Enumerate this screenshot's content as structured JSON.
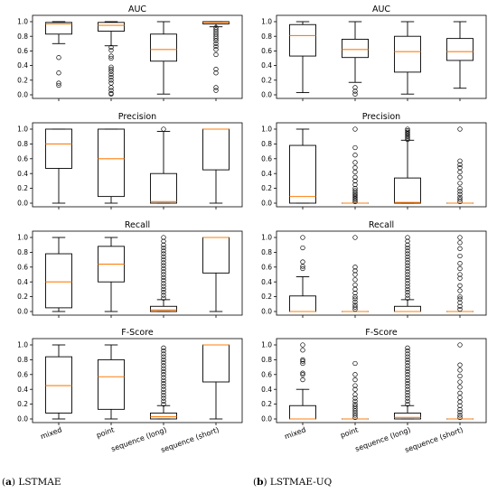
{
  "captions": [
    {
      "letter": "a",
      "text": "LSTMAE"
    },
    {
      "letter": "b",
      "text": "LSTMAE-UQ"
    }
  ],
  "colors": {
    "box": "#000000",
    "median": "#ff7f0e",
    "outlier": "#000000"
  },
  "chart_data": [
    {
      "type": "box",
      "column": 0,
      "row": 0,
      "title": "AUC",
      "categories": [
        "mixed",
        "point",
        "sequence (long)",
        "sequence (short)"
      ],
      "ylim": [
        0,
        1
      ],
      "yticks": [
        0.0,
        0.2,
        0.4,
        0.6,
        0.8,
        1.0
      ],
      "boxes": [
        {
          "whisker_low": 0.7,
          "q1": 0.83,
          "median": 0.97,
          "q3": 0.99,
          "whisker_high": 1.0,
          "outliers": [
            0.51,
            0.3,
            0.16,
            0.13
          ]
        },
        {
          "whisker_low": 0.67,
          "q1": 0.87,
          "median": 0.95,
          "q3": 0.99,
          "whisker_high": 1.0,
          "outliers": [
            0.65,
            0.61,
            0.53,
            0.5,
            0.38,
            0.35,
            0.32,
            0.28,
            0.24,
            0.2,
            0.16,
            0.1,
            0.06,
            0.02,
            0.01
          ]
        },
        {
          "whisker_low": 0.01,
          "q1": 0.46,
          "median": 0.62,
          "q3": 0.83,
          "whisker_high": 1.0,
          "outliers": []
        },
        {
          "whisker_low": 0.93,
          "q1": 0.97,
          "median": 0.99,
          "q3": 1.0,
          "whisker_high": 1.0,
          "outliers": [
            0.92,
            0.89,
            0.86,
            0.83,
            0.8,
            0.77,
            0.74,
            0.7,
            0.66,
            0.62,
            0.55,
            0.35,
            0.3,
            0.1,
            0.06
          ]
        }
      ]
    },
    {
      "type": "box",
      "column": 0,
      "row": 1,
      "title": "Precision",
      "categories": [
        "mixed",
        "point",
        "sequence (long)",
        "sequence (short)"
      ],
      "ylim": [
        0,
        1
      ],
      "yticks": [
        0.0,
        0.2,
        0.4,
        0.6,
        0.8,
        1.0
      ],
      "boxes": [
        {
          "whisker_low": 0.0,
          "q1": 0.47,
          "median": 0.8,
          "q3": 1.0,
          "whisker_high": 1.0,
          "outliers": []
        },
        {
          "whisker_low": 0.0,
          "q1": 0.09,
          "median": 0.6,
          "q3": 1.0,
          "whisker_high": 1.0,
          "outliers": []
        },
        {
          "whisker_low": 0.0,
          "q1": 0.0,
          "median": 0.02,
          "q3": 0.4,
          "whisker_high": 0.97,
          "outliers": [
            1.0
          ]
        },
        {
          "whisker_low": 0.0,
          "q1": 0.45,
          "median": 1.0,
          "q3": 1.0,
          "whisker_high": 1.0,
          "outliers": []
        }
      ]
    },
    {
      "type": "box",
      "column": 0,
      "row": 2,
      "title": "Recall",
      "categories": [
        "mixed",
        "point",
        "sequence (long)",
        "sequence (short)"
      ],
      "ylim": [
        0,
        1
      ],
      "yticks": [
        0.0,
        0.2,
        0.4,
        0.6,
        0.8,
        1.0
      ],
      "boxes": [
        {
          "whisker_low": 0.0,
          "q1": 0.05,
          "median": 0.4,
          "q3": 0.78,
          "whisker_high": 1.0,
          "outliers": []
        },
        {
          "whisker_low": 0.0,
          "q1": 0.4,
          "median": 0.64,
          "q3": 0.88,
          "whisker_high": 1.0,
          "outliers": []
        },
        {
          "whisker_low": 0.0,
          "q1": 0.0,
          "median": 0.02,
          "q3": 0.07,
          "whisker_high": 0.16,
          "outliers": [
            0.18,
            0.22,
            0.26,
            0.3,
            0.34,
            0.38,
            0.42,
            0.46,
            0.5,
            0.54,
            0.58,
            0.62,
            0.66,
            0.7,
            0.74,
            0.78,
            0.82,
            0.86,
            0.9,
            0.95,
            1.0
          ]
        },
        {
          "whisker_low": 0.0,
          "q1": 0.52,
          "median": 1.0,
          "q3": 1.0,
          "whisker_high": 1.0,
          "outliers": []
        }
      ]
    },
    {
      "type": "box",
      "column": 0,
      "row": 3,
      "title": "F-Score",
      "categories": [
        "mixed",
        "point",
        "sequence (long)",
        "sequence (short)"
      ],
      "ylim": [
        0,
        1
      ],
      "yticks": [
        0.0,
        0.2,
        0.4,
        0.6,
        0.8,
        1.0
      ],
      "boxes": [
        {
          "whisker_low": 0.0,
          "q1": 0.08,
          "median": 0.45,
          "q3": 0.84,
          "whisker_high": 1.0,
          "outliers": []
        },
        {
          "whisker_low": 0.0,
          "q1": 0.13,
          "median": 0.57,
          "q3": 0.8,
          "whisker_high": 1.0,
          "outliers": []
        },
        {
          "whisker_low": 0.0,
          "q1": 0.0,
          "median": 0.03,
          "q3": 0.08,
          "whisker_high": 0.18,
          "outliers": [
            0.2,
            0.24,
            0.28,
            0.32,
            0.36,
            0.4,
            0.44,
            0.48,
            0.52,
            0.56,
            0.6,
            0.64,
            0.68,
            0.72,
            0.76,
            0.8,
            0.84,
            0.88,
            0.92,
            0.96
          ]
        },
        {
          "whisker_low": 0.0,
          "q1": 0.5,
          "median": 1.0,
          "q3": 1.0,
          "whisker_high": 1.0,
          "outliers": []
        }
      ]
    },
    {
      "type": "box",
      "column": 1,
      "row": 0,
      "title": "AUC",
      "categories": [
        "mixed",
        "point",
        "sequence (long)",
        "sequence (short)"
      ],
      "ylim": [
        0,
        1
      ],
      "yticks": [
        0.0,
        0.2,
        0.4,
        0.6,
        0.8,
        1.0
      ],
      "boxes": [
        {
          "whisker_low": 0.03,
          "q1": 0.53,
          "median": 0.81,
          "q3": 0.96,
          "whisker_high": 1.0,
          "outliers": []
        },
        {
          "whisker_low": 0.17,
          "q1": 0.51,
          "median": 0.62,
          "q3": 0.76,
          "whisker_high": 1.0,
          "outliers": [
            0.1,
            0.05,
            0.01
          ]
        },
        {
          "whisker_low": 0.01,
          "q1": 0.31,
          "median": 0.59,
          "q3": 0.8,
          "whisker_high": 1.0,
          "outliers": []
        },
        {
          "whisker_low": 0.09,
          "q1": 0.47,
          "median": 0.59,
          "q3": 0.77,
          "whisker_high": 1.0,
          "outliers": []
        }
      ]
    },
    {
      "type": "box",
      "column": 1,
      "row": 1,
      "title": "Precision",
      "categories": [
        "mixed",
        "point",
        "sequence (long)",
        "sequence (short)"
      ],
      "ylim": [
        0,
        1
      ],
      "yticks": [
        0.0,
        0.2,
        0.4,
        0.6,
        0.8,
        1.0
      ],
      "boxes": [
        {
          "whisker_low": 0.0,
          "q1": 0.0,
          "median": 0.09,
          "q3": 0.78,
          "whisker_high": 1.0,
          "outliers": []
        },
        {
          "whisker_low": 0.0,
          "q1": 0.0,
          "median": 0.0,
          "q3": 0.0,
          "whisker_high": 0.0,
          "outliers": [
            0.02,
            0.04,
            0.06,
            0.08,
            0.1,
            0.12,
            0.14,
            0.17,
            0.2,
            0.25,
            0.3,
            0.35,
            0.42,
            0.48,
            0.55,
            0.65,
            0.75,
            1.0
          ]
        },
        {
          "whisker_low": 0.0,
          "q1": 0.0,
          "median": 0.01,
          "q3": 0.34,
          "whisker_high": 0.85,
          "outliers": [
            0.86,
            0.88,
            0.9,
            0.92,
            0.94,
            0.96,
            0.98,
            1.0
          ]
        },
        {
          "whisker_low": 0.0,
          "q1": 0.0,
          "median": 0.0,
          "q3": 0.0,
          "whisker_high": 0.0,
          "outliers": [
            0.02,
            0.05,
            0.08,
            0.12,
            0.16,
            0.2,
            0.27,
            0.35,
            0.42,
            0.48,
            0.52,
            0.57,
            1.0
          ]
        }
      ]
    },
    {
      "type": "box",
      "column": 1,
      "row": 2,
      "title": "Recall",
      "categories": [
        "mixed",
        "point",
        "sequence (long)",
        "sequence (short)"
      ],
      "ylim": [
        0,
        1
      ],
      "yticks": [
        0.0,
        0.2,
        0.4,
        0.6,
        0.8,
        1.0
      ],
      "boxes": [
        {
          "whisker_low": 0.0,
          "q1": 0.0,
          "median": 0.0,
          "q3": 0.21,
          "whisker_high": 0.47,
          "outliers": [
            0.58,
            0.61,
            0.67,
            0.86,
            1.0
          ]
        },
        {
          "whisker_low": 0.0,
          "q1": 0.0,
          "median": 0.0,
          "q3": 0.0,
          "whisker_high": 0.0,
          "outliers": [
            0.03,
            0.06,
            0.09,
            0.13,
            0.17,
            0.2,
            0.25,
            0.3,
            0.36,
            0.43,
            0.5,
            0.55,
            0.6,
            1.0
          ]
        },
        {
          "whisker_low": 0.0,
          "q1": 0.0,
          "median": 0.0,
          "q3": 0.07,
          "whisker_high": 0.16,
          "outliers": [
            0.18,
            0.22,
            0.26,
            0.3,
            0.34,
            0.38,
            0.42,
            0.46,
            0.5,
            0.54,
            0.58,
            0.62,
            0.66,
            0.7,
            0.74,
            0.78,
            0.82,
            0.86,
            0.9,
            0.95,
            1.0
          ]
        },
        {
          "whisker_low": 0.0,
          "q1": 0.0,
          "median": 0.0,
          "q3": 0.0,
          "whisker_high": 0.0,
          "outliers": [
            0.03,
            0.07,
            0.12,
            0.17,
            0.2,
            0.28,
            0.35,
            0.45,
            0.5,
            0.58,
            0.65,
            0.75,
            0.85,
            0.93,
            1.0
          ]
        }
      ]
    },
    {
      "type": "box",
      "column": 1,
      "row": 3,
      "title": "F-Score",
      "categories": [
        "mixed",
        "point",
        "sequence (long)",
        "sequence (short)"
      ],
      "ylim": [
        0,
        1
      ],
      "yticks": [
        0.0,
        0.2,
        0.4,
        0.6,
        0.8,
        1.0
      ],
      "boxes": [
        {
          "whisker_low": 0.0,
          "q1": 0.0,
          "median": 0.0,
          "q3": 0.18,
          "whisker_high": 0.4,
          "outliers": [
            0.53,
            0.6,
            0.62,
            0.75,
            0.78,
            0.8,
            0.93,
            1.0
          ]
        },
        {
          "whisker_low": 0.0,
          "q1": 0.0,
          "median": 0.0,
          "q3": 0.0,
          "whisker_high": 0.0,
          "outliers": [
            0.02,
            0.05,
            0.08,
            0.11,
            0.14,
            0.17,
            0.2,
            0.24,
            0.28,
            0.33,
            0.4,
            0.45,
            0.53,
            0.6,
            0.75
          ]
        },
        {
          "whisker_low": 0.0,
          "q1": 0.0,
          "median": 0.02,
          "q3": 0.08,
          "whisker_high": 0.18,
          "outliers": [
            0.2,
            0.24,
            0.28,
            0.32,
            0.36,
            0.4,
            0.44,
            0.48,
            0.52,
            0.56,
            0.6,
            0.64,
            0.68,
            0.72,
            0.76,
            0.8,
            0.84,
            0.88,
            0.92,
            0.96
          ]
        },
        {
          "whisker_low": 0.0,
          "q1": 0.0,
          "median": 0.0,
          "q3": 0.0,
          "whisker_high": 0.0,
          "outliers": [
            0.02,
            0.05,
            0.09,
            0.13,
            0.18,
            0.23,
            0.29,
            0.35,
            0.43,
            0.5,
            0.58,
            0.66,
            0.73,
            1.0
          ]
        }
      ]
    }
  ]
}
